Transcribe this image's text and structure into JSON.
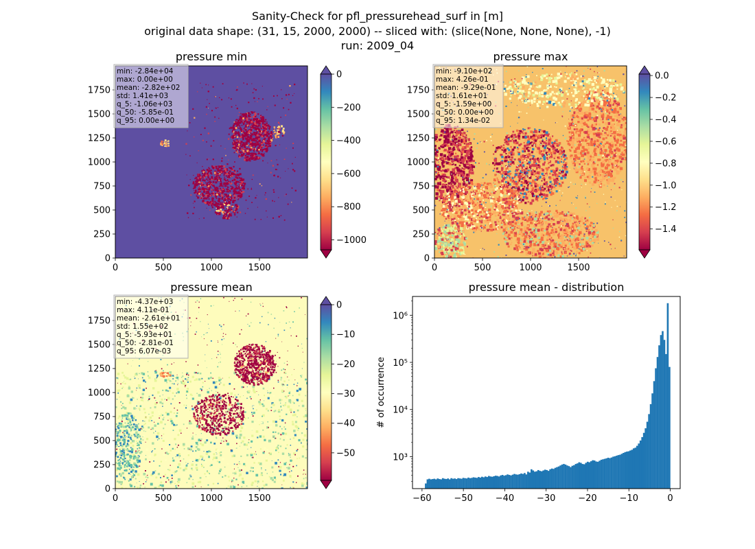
{
  "figure": {
    "title_lines": [
      "Sanity-Check for pfl_pressurehead_surf in [m]",
      "original data shape: (31, 15, 2000, 2000) -- sliced with: (slice(None, None, None), -1)",
      "run: 2009_04"
    ]
  },
  "panels": [
    {
      "title": "pressure min",
      "x_ticks": [
        "0",
        "500",
        "1000",
        "1500"
      ],
      "y_ticks": [
        "0",
        "250",
        "500",
        "750",
        "1000",
        "1250",
        "1500",
        "1750"
      ],
      "stats": [
        "min: -2.84e+04",
        "max: 0.00e+00",
        "mean: -2.82e+02",
        "std: 1.41e+03",
        "q_5: -1.06e+03",
        "q_50: -5.85e-01",
        "q_95: 0.00e+00"
      ],
      "colorbar": {
        "ticks": [
          "0",
          "−200",
          "−400",
          "−600",
          "−800",
          "−1000"
        ],
        "values": [
          0,
          -200,
          -400,
          -600,
          -800,
          -1000
        ],
        "vmin": -1060,
        "vmax": 0,
        "colormap": "Spectral"
      }
    },
    {
      "title": "pressure max",
      "x_ticks": [
        "0",
        "500",
        "1000",
        "1500"
      ],
      "y_ticks": [
        "0",
        "250",
        "500",
        "750",
        "1000",
        "1250",
        "1500",
        "1750"
      ],
      "stats": [
        "min: -9.10e+02",
        "max: 4.26e-01",
        "mean: -9.29e-01",
        "std: 1.61e+01",
        "q_5: -1.59e+00",
        "q_50: 0.00e+00",
        "q_95: 1.34e-02"
      ],
      "colorbar": {
        "ticks": [
          "0.0",
          "−0.2",
          "−0.4",
          "−0.6",
          "−0.8",
          "−1.0",
          "−1.2",
          "−1.4"
        ],
        "values": [
          0,
          -0.2,
          -0.4,
          -0.6,
          -0.8,
          -1.0,
          -1.2,
          -1.4
        ],
        "vmin": -1.59,
        "vmax": 0.013,
        "colormap": "Spectral"
      }
    },
    {
      "title": "pressure mean",
      "x_ticks": [
        "0",
        "500",
        "1000",
        "1500"
      ],
      "y_ticks": [
        "0",
        "250",
        "500",
        "750",
        "1000",
        "1250",
        "1500",
        "1750"
      ],
      "stats": [
        "min: -4.37e+03",
        "max: 4.11e-01",
        "mean: -2.61e+01",
        "std: 1.55e+02",
        "q_5: -5.93e+01",
        "q_50: -2.81e-01",
        "q_95: 6.07e-03"
      ],
      "colorbar": {
        "ticks": [
          "0",
          "−10",
          "−20",
          "−30",
          "−40",
          "−50"
        ],
        "values": [
          0,
          -10,
          -20,
          -30,
          -40,
          -50
        ],
        "vmin": -59.3,
        "vmax": 0.006,
        "colormap": "Spectral"
      }
    }
  ],
  "chart_data": [
    {
      "type": "heatmap",
      "title": "pressure min",
      "x_range": [
        0,
        2000
      ],
      "y_range": [
        0,
        2000
      ],
      "color_range": [
        -1060,
        0
      ],
      "colormap": "Spectral",
      "colorbar_extend": "both"
    },
    {
      "type": "heatmap",
      "title": "pressure max",
      "x_range": [
        0,
        2000
      ],
      "y_range": [
        0,
        2000
      ],
      "color_range": [
        -1.59,
        0.013
      ],
      "colormap": "Spectral",
      "colorbar_extend": "both"
    },
    {
      "type": "heatmap",
      "title": "pressure mean",
      "x_range": [
        0,
        2000
      ],
      "y_range": [
        0,
        2000
      ],
      "color_range": [
        -59.3,
        0.006
      ],
      "colormap": "Spectral",
      "colorbar_extend": "both"
    },
    {
      "type": "bar",
      "title": "pressure mean - distribution",
      "xlabel": "",
      "ylabel": "# of occurrence",
      "x_ticks": [
        "−60",
        "−50",
        "−40",
        "−30",
        "−20",
        "−10",
        "0"
      ],
      "x_tick_values": [
        -60,
        -50,
        -40,
        -30,
        -20,
        -10,
        0
      ],
      "y_ticks": [
        "10³",
        "10⁴",
        "10⁵",
        "10⁶"
      ],
      "y_tick_values": [
        1000,
        10000,
        100000,
        1000000
      ],
      "xlim": [
        -62.3,
        2.4
      ],
      "ylim": [
        210,
        2500000
      ],
      "yscale": "log",
      "bin_range": [
        -59.3,
        0.006
      ],
      "bar_color": "#1f77b4",
      "counts": [
        270,
        330,
        340,
        330,
        335,
        340,
        330,
        345,
        335,
        330,
        350,
        340,
        335,
        345,
        330,
        350,
        340,
        345,
        335,
        350,
        345,
        340,
        355,
        350,
        345,
        360,
        350,
        355,
        365,
        360,
        355,
        370,
        360,
        375,
        365,
        380,
        370,
        390,
        380,
        375,
        385,
        395,
        390,
        380,
        400,
        410,
        395,
        405,
        420,
        410,
        400,
        415,
        430,
        420,
        415,
        425,
        440,
        430,
        450,
        420,
        480,
        460,
        540,
        510,
        480,
        490,
        520,
        500,
        490,
        510,
        530,
        520,
        500,
        540,
        560,
        550,
        580,
        600,
        620,
        650,
        680,
        700,
        680,
        650,
        630,
        600,
        640,
        660,
        700,
        720,
        760,
        740,
        700,
        690,
        740,
        780,
        760,
        800,
        840,
        830,
        790,
        780,
        820,
        860,
        880,
        900,
        920,
        950,
        930,
        960,
        1000,
        1020,
        1050,
        1080,
        1100,
        1150,
        1200,
        1250,
        1280,
        1300,
        1350,
        1400,
        1500,
        1550,
        1700,
        1900,
        2200,
        2600,
        3200,
        4000,
        5500,
        8000,
        13000,
        22000,
        40000,
        75000,
        130000,
        230000,
        380000,
        460000,
        300000,
        150000,
        1800000,
        80000
      ]
    }
  ]
}
